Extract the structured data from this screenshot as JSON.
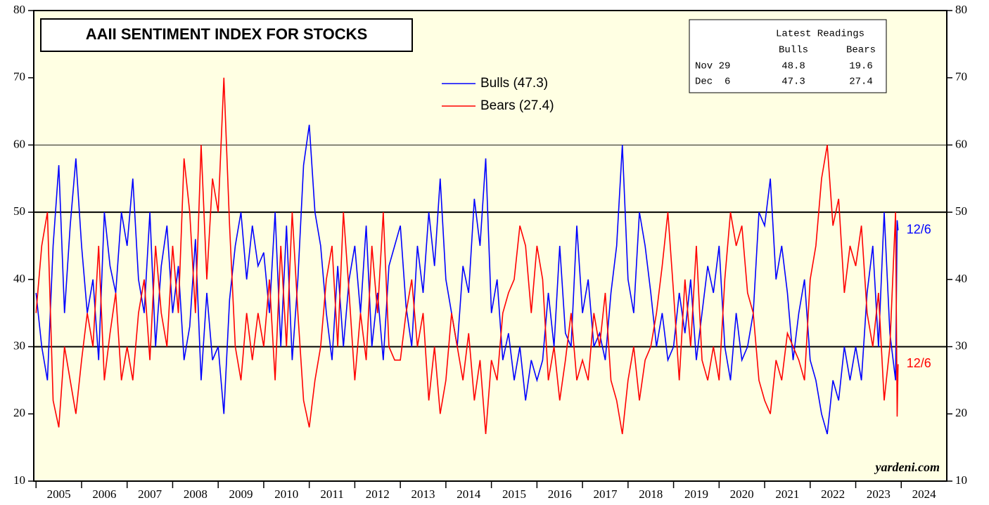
{
  "chart_data": {
    "type": "line",
    "title": "AAII SENTIMENT INDEX FOR STOCKS",
    "watermark": "yardeni.com",
    "xlim": [
      2004.95,
      2025
    ],
    "xticks": [
      2005,
      2006,
      2007,
      2008,
      2009,
      2010,
      2011,
      2012,
      2013,
      2014,
      2015,
      2016,
      2017,
      2018,
      2019,
      2020,
      2021,
      2022,
      2023,
      2024
    ],
    "ylim": [
      10,
      80
    ],
    "yticks": [
      10,
      20,
      30,
      40,
      50,
      60,
      70,
      80
    ],
    "y2lim": [
      10,
      80
    ],
    "y2ticks": [
      10,
      20,
      30,
      40,
      50,
      60,
      70,
      80
    ],
    "hlines": [
      30,
      50,
      60
    ],
    "x": [
      2005,
      2005.125,
      2005.25,
      2005.375,
      2005.5,
      2005.625,
      2005.75,
      2005.875,
      2006,
      2006.125,
      2006.25,
      2006.375,
      2006.5,
      2006.625,
      2006.75,
      2006.875,
      2007,
      2007.125,
      2007.25,
      2007.375,
      2007.5,
      2007.625,
      2007.75,
      2007.875,
      2008,
      2008.125,
      2008.25,
      2008.375,
      2008.5,
      2008.625,
      2008.75,
      2008.875,
      2009,
      2009.125,
      2009.25,
      2009.375,
      2009.5,
      2009.625,
      2009.75,
      2009.875,
      2010,
      2010.125,
      2010.25,
      2010.375,
      2010.5,
      2010.625,
      2010.75,
      2010.875,
      2011,
      2011.125,
      2011.25,
      2011.375,
      2011.5,
      2011.625,
      2011.75,
      2011.875,
      2012,
      2012.125,
      2012.25,
      2012.375,
      2012.5,
      2012.625,
      2012.75,
      2012.875,
      2013,
      2013.125,
      2013.25,
      2013.375,
      2013.5,
      2013.625,
      2013.75,
      2013.875,
      2014,
      2014.125,
      2014.25,
      2014.375,
      2014.5,
      2014.625,
      2014.75,
      2014.875,
      2015,
      2015.125,
      2015.25,
      2015.375,
      2015.5,
      2015.625,
      2015.75,
      2015.875,
      2016,
      2016.125,
      2016.25,
      2016.375,
      2016.5,
      2016.625,
      2016.75,
      2016.875,
      2017,
      2017.125,
      2017.25,
      2017.375,
      2017.5,
      2017.625,
      2017.75,
      2017.875,
      2018,
      2018.125,
      2018.25,
      2018.375,
      2018.5,
      2018.625,
      2018.75,
      2018.875,
      2019,
      2019.125,
      2019.25,
      2019.375,
      2019.5,
      2019.625,
      2019.75,
      2019.875,
      2020,
      2020.125,
      2020.25,
      2020.375,
      2020.5,
      2020.625,
      2020.75,
      2020.875,
      2021,
      2021.125,
      2021.25,
      2021.375,
      2021.5,
      2021.625,
      2021.75,
      2021.875,
      2022,
      2022.125,
      2022.25,
      2022.375,
      2022.5,
      2022.625,
      2022.75,
      2022.875,
      2023,
      2023.125,
      2023.25,
      2023.375,
      2023.5,
      2023.625,
      2023.75,
      2023.875,
      2023.91,
      2023.93
    ],
    "series": [
      {
        "name": "Bulls (47.3)",
        "color": "#0000ff",
        "end_label": "12/6",
        "values": [
          38,
          30,
          25,
          45,
          57,
          35,
          48,
          58,
          45,
          35,
          40,
          28,
          50,
          42,
          38,
          50,
          45,
          55,
          40,
          35,
          50,
          30,
          42,
          48,
          35,
          42,
          28,
          33,
          46,
          25,
          38,
          28,
          30,
          20,
          37,
          45,
          50,
          40,
          48,
          42,
          44,
          35,
          50,
          30,
          48,
          28,
          40,
          57,
          63,
          50,
          45,
          35,
          28,
          42,
          30,
          40,
          45,
          35,
          48,
          30,
          38,
          28,
          42,
          45,
          48,
          36,
          30,
          45,
          38,
          50,
          42,
          55,
          40,
          35,
          30,
          42,
          38,
          52,
          45,
          58,
          35,
          40,
          28,
          32,
          25,
          30,
          22,
          28,
          25,
          28,
          38,
          30,
          45,
          32,
          30,
          48,
          35,
          40,
          30,
          32,
          28,
          38,
          45,
          60,
          40,
          35,
          50,
          45,
          38,
          30,
          35,
          28,
          30,
          38,
          32,
          40,
          28,
          35,
          42,
          38,
          45,
          30,
          25,
          35,
          28,
          30,
          35,
          50,
          48,
          55,
          40,
          45,
          38,
          28,
          35,
          40,
          28,
          25,
          20,
          17,
          25,
          22,
          30,
          25,
          30,
          25,
          38,
          45,
          30,
          50,
          32,
          25,
          48.8,
          47.3
        ]
      },
      {
        "name": "Bears (27.4)",
        "color": "#ff0000",
        "end_label": "12/6",
        "values": [
          35,
          45,
          50,
          22,
          18,
          30,
          25,
          20,
          28,
          35,
          30,
          45,
          25,
          32,
          38,
          25,
          30,
          25,
          35,
          40,
          28,
          45,
          35,
          30,
          45,
          35,
          58,
          50,
          35,
          60,
          40,
          55,
          50,
          70,
          48,
          30,
          25,
          35,
          28,
          35,
          30,
          40,
          25,
          45,
          30,
          50,
          35,
          22,
          18,
          25,
          30,
          40,
          45,
          30,
          50,
          38,
          25,
          35,
          28,
          45,
          35,
          50,
          30,
          28,
          28,
          35,
          40,
          30,
          35,
          22,
          30,
          20,
          25,
          35,
          30,
          25,
          32,
          22,
          28,
          17,
          28,
          25,
          35,
          38,
          40,
          48,
          45,
          35,
          45,
          40,
          25,
          30,
          22,
          28,
          35,
          25,
          28,
          25,
          35,
          30,
          38,
          25,
          22,
          17,
          25,
          30,
          22,
          28,
          30,
          35,
          42,
          50,
          38,
          25,
          40,
          30,
          45,
          28,
          25,
          30,
          25,
          40,
          50,
          45,
          48,
          38,
          35,
          25,
          22,
          20,
          28,
          25,
          32,
          30,
          28,
          25,
          40,
          45,
          55,
          60,
          48,
          52,
          38,
          45,
          42,
          48,
          35,
          30,
          38,
          22,
          30,
          50,
          19.6,
          27.4
        ]
      }
    ],
    "table": {
      "title": "Latest Readings",
      "columns": [
        "Bulls",
        "Bears"
      ],
      "rows": [
        [
          "Nov 29",
          "48.8",
          "19.6"
        ],
        [
          "Dec  6",
          "47.3",
          "27.4"
        ]
      ]
    }
  }
}
